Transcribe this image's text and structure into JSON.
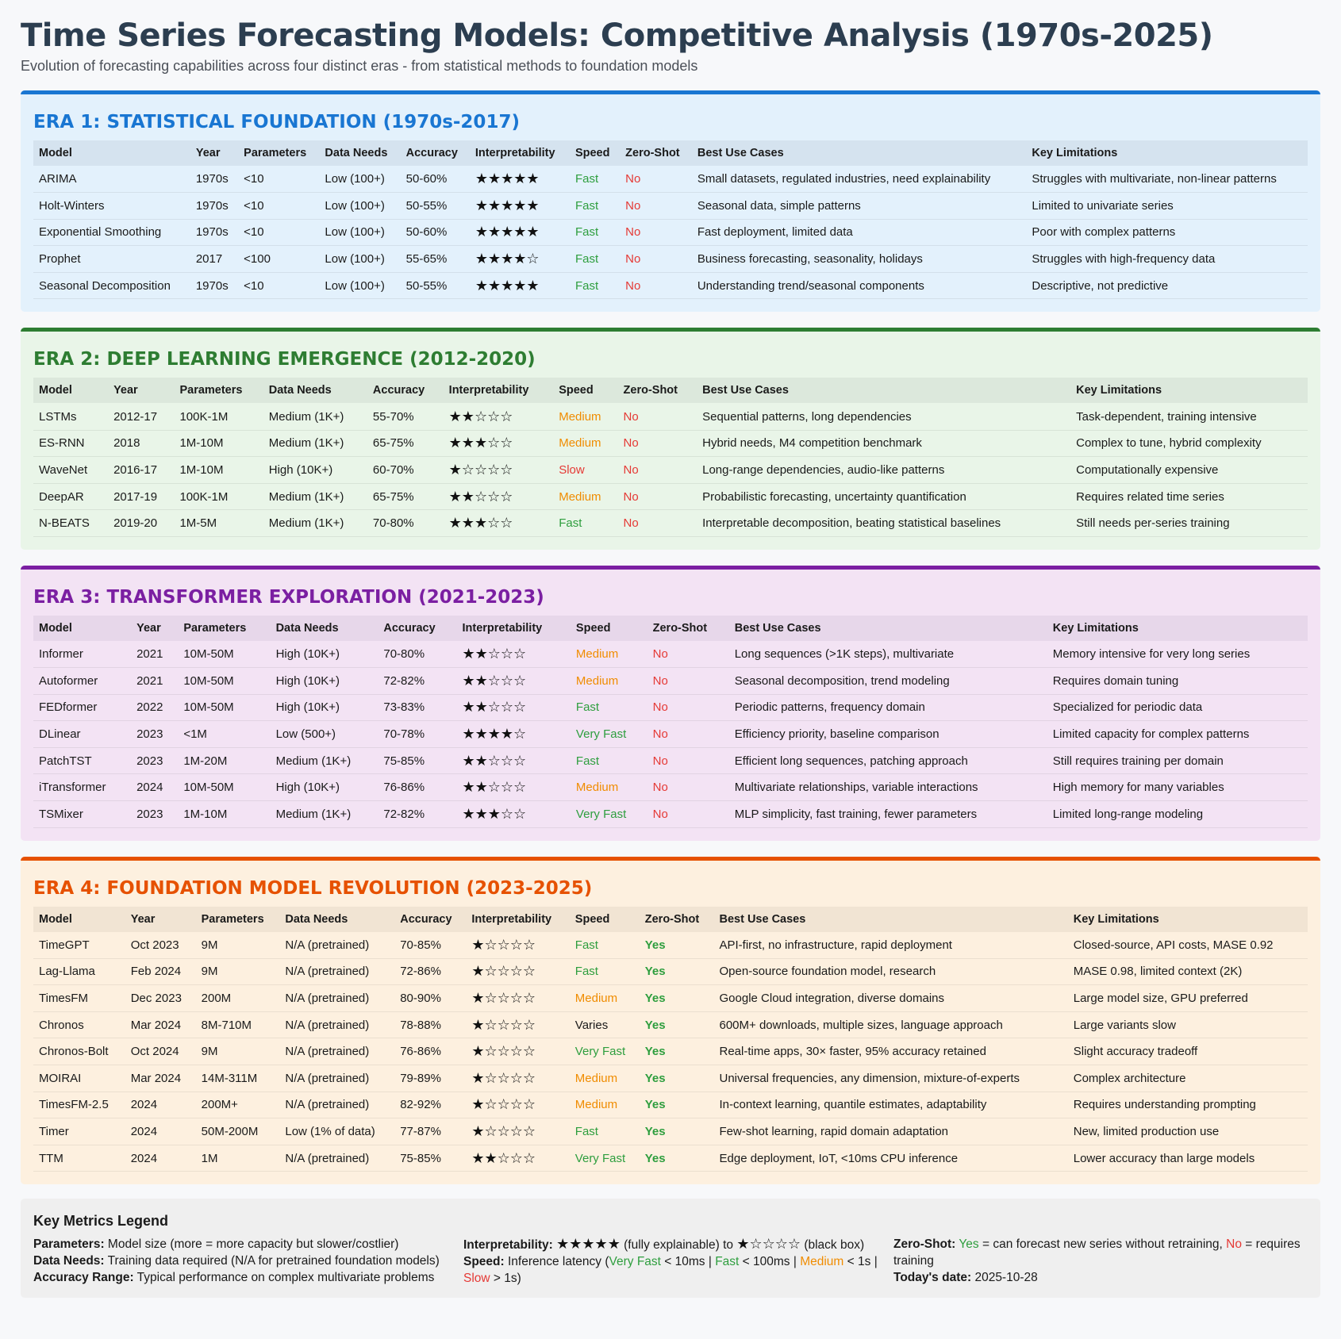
{
  "title": "Time Series Forecasting Models: Competitive Analysis (1970s-2025)",
  "subtitle": "Evolution of forecasting capabilities across four distinct eras - from statistical methods to foundation models",
  "headers": [
    "Model",
    "Year",
    "Parameters",
    "Data Needs",
    "Accuracy",
    "Interpretability",
    "Speed",
    "Zero-Shot",
    "Best Use Cases",
    "Key Limitations"
  ],
  "eras": [
    {
      "title": "ERA 1: STATISTICAL FOUNDATION (1970s-2017)",
      "color": "#1976d2",
      "rows": [
        [
          "ARIMA",
          "1970s",
          "<10",
          "Low (100+)",
          "50-60%",
          "★★★★★",
          "Fast",
          "No",
          "Small datasets, regulated industries, need explainability",
          "Struggles with multivariate, non-linear patterns"
        ],
        [
          "Holt-Winters",
          "1970s",
          "<10",
          "Low (100+)",
          "50-55%",
          "★★★★★",
          "Fast",
          "No",
          "Seasonal data, simple patterns",
          "Limited to univariate series"
        ],
        [
          "Exponential Smoothing",
          "1970s",
          "<10",
          "Low (100+)",
          "50-60%",
          "★★★★★",
          "Fast",
          "No",
          "Fast deployment, limited data",
          "Poor with complex patterns"
        ],
        [
          "Prophet",
          "2017",
          "<100",
          "Low (100+)",
          "55-65%",
          "★★★★☆",
          "Fast",
          "No",
          "Business forecasting, seasonality, holidays",
          "Struggles with high-frequency data"
        ],
        [
          "Seasonal Decomposition",
          "1970s",
          "<10",
          "Low (100+)",
          "50-55%",
          "★★★★★",
          "Fast",
          "No",
          "Understanding trend/seasonal components",
          "Descriptive, not predictive"
        ]
      ]
    },
    {
      "title": "ERA 2: DEEP LEARNING EMERGENCE (2012-2020)",
      "color": "#2e7d32",
      "rows": [
        [
          "LSTMs",
          "2012-17",
          "100K-1M",
          "Medium (1K+)",
          "55-70%",
          "★★☆☆☆",
          "Medium",
          "No",
          "Sequential patterns, long dependencies",
          "Task-dependent, training intensive"
        ],
        [
          "ES-RNN",
          "2018",
          "1M-10M",
          "Medium (1K+)",
          "65-75%",
          "★★★☆☆",
          "Medium",
          "No",
          "Hybrid needs, M4 competition benchmark",
          "Complex to tune, hybrid complexity"
        ],
        [
          "WaveNet",
          "2016-17",
          "1M-10M",
          "High (10K+)",
          "60-70%",
          "★☆☆☆☆",
          "Slow",
          "No",
          "Long-range dependencies, audio-like patterns",
          "Computationally expensive"
        ],
        [
          "DeepAR",
          "2017-19",
          "100K-1M",
          "Medium (1K+)",
          "65-75%",
          "★★☆☆☆",
          "Medium",
          "No",
          "Probabilistic forecasting, uncertainty quantification",
          "Requires related time series"
        ],
        [
          "N-BEATS",
          "2019-20",
          "1M-5M",
          "Medium (1K+)",
          "70-80%",
          "★★★☆☆",
          "Fast",
          "No",
          "Interpretable decomposition, beating statistical baselines",
          "Still needs per-series training"
        ]
      ]
    },
    {
      "title": "ERA 3: TRANSFORMER EXPLORATION (2021-2023)",
      "color": "#7b1fa2",
      "rows": [
        [
          "Informer",
          "2021",
          "10M-50M",
          "High (10K+)",
          "70-80%",
          "★★☆☆☆",
          "Medium",
          "No",
          "Long sequences (>1K steps), multivariate",
          "Memory intensive for very long series"
        ],
        [
          "Autoformer",
          "2021",
          "10M-50M",
          "High (10K+)",
          "72-82%",
          "★★☆☆☆",
          "Medium",
          "No",
          "Seasonal decomposition, trend modeling",
          "Requires domain tuning"
        ],
        [
          "FEDformer",
          "2022",
          "10M-50M",
          "High (10K+)",
          "73-83%",
          "★★☆☆☆",
          "Fast",
          "No",
          "Periodic patterns, frequency domain",
          "Specialized for periodic data"
        ],
        [
          "DLinear",
          "2023",
          "<1M",
          "Low (500+)",
          "70-78%",
          "★★★★☆",
          "Very Fast",
          "No",
          "Efficiency priority, baseline comparison",
          "Limited capacity for complex patterns"
        ],
        [
          "PatchTST",
          "2023",
          "1M-20M",
          "Medium (1K+)",
          "75-85%",
          "★★☆☆☆",
          "Fast",
          "No",
          "Efficient long sequences, patching approach",
          "Still requires training per domain"
        ],
        [
          "iTransformer",
          "2024",
          "10M-50M",
          "High (10K+)",
          "76-86%",
          "★★☆☆☆",
          "Medium",
          "No",
          "Multivariate relationships, variable interactions",
          "High memory for many variables"
        ],
        [
          "TSMixer",
          "2023",
          "1M-10M",
          "Medium (1K+)",
          "72-82%",
          "★★★☆☆",
          "Very Fast",
          "No",
          "MLP simplicity, fast training, fewer parameters",
          "Limited long-range modeling"
        ]
      ]
    },
    {
      "title": "ERA 4: FOUNDATION MODEL REVOLUTION (2023-2025)",
      "color": "#e65100",
      "rows": [
        [
          "TimeGPT",
          "Oct 2023",
          "9M",
          "N/A (pretrained)",
          "70-85%",
          "★☆☆☆☆",
          "Fast",
          "Yes",
          "API-first, no infrastructure, rapid deployment",
          "Closed-source, API costs, MASE 0.92"
        ],
        [
          "Lag-Llama",
          "Feb 2024",
          "9M",
          "N/A (pretrained)",
          "72-86%",
          "★☆☆☆☆",
          "Fast",
          "Yes",
          "Open-source foundation model, research",
          "MASE 0.98, limited context (2K)"
        ],
        [
          "TimesFM",
          "Dec 2023",
          "200M",
          "N/A (pretrained)",
          "80-90%",
          "★☆☆☆☆",
          "Medium",
          "Yes",
          "Google Cloud integration, diverse domains",
          "Large model size, GPU preferred"
        ],
        [
          "Chronos",
          "Mar 2024",
          "8M-710M",
          "N/A (pretrained)",
          "78-88%",
          "★☆☆☆☆",
          "Varies",
          "Yes",
          "600M+ downloads, multiple sizes, language approach",
          "Large variants slow"
        ],
        [
          "Chronos-Bolt",
          "Oct 2024",
          "9M",
          "N/A (pretrained)",
          "76-86%",
          "★☆☆☆☆",
          "Very Fast",
          "Yes",
          "Real-time apps, 30× faster, 95% accuracy retained",
          "Slight accuracy tradeoff"
        ],
        [
          "MOIRAI",
          "Mar 2024",
          "14M-311M",
          "N/A (pretrained)",
          "79-89%",
          "★☆☆☆☆",
          "Medium",
          "Yes",
          "Universal frequencies, any dimension, mixture-of-experts",
          "Complex architecture"
        ],
        [
          "TimesFM-2.5",
          "2024",
          "200M+",
          "N/A (pretrained)",
          "82-92%",
          "★☆☆☆☆",
          "Medium",
          "Yes",
          "In-context learning, quantile estimates, adaptability",
          "Requires understanding prompting"
        ],
        [
          "Timer",
          "2024",
          "50M-200M",
          "Low (1% of data)",
          "77-87%",
          "★☆☆☆☆",
          "Fast",
          "Yes",
          "Few-shot learning, rapid domain adaptation",
          "New, limited production use"
        ],
        [
          "TTM",
          "2024",
          "1M",
          "N/A (pretrained)",
          "75-85%",
          "★★☆☆☆",
          "Very Fast",
          "Yes",
          "Edge deployment, IoT, <10ms CPU inference",
          "Lower accuracy than large models"
        ]
      ]
    }
  ],
  "legend": {
    "title": "Key Metrics Legend",
    "parameters_label": "Parameters:",
    "parameters_text": "Model size (more = more capacity but slower/costlier)",
    "data_needs_label": "Data Needs:",
    "data_needs_text": "Training data required (N/A for pretrained foundation models)",
    "accuracy_label": "Accuracy Range:",
    "accuracy_text": "Typical performance on complex multivariate problems",
    "interp_label": "Interpretability:",
    "interp_high": "★★★★★",
    "interp_mid": "(fully explainable) to",
    "interp_low": "★☆☆☆☆",
    "interp_end": "(black box)",
    "speed_label": "Speed:",
    "speed_pre": "Inference latency (",
    "speed_vf": "Very Fast",
    "speed_vf_t": "< 10ms |",
    "speed_f": "Fast",
    "speed_f_t": "< 100ms |",
    "speed_m": "Medium",
    "speed_m_t": "< 1s |",
    "speed_s": "Slow",
    "speed_s_t": "> 1s)",
    "zeroshot_label": "Zero-Shot:",
    "zeroshot_yes": "Yes",
    "zeroshot_yes_t": "= can forecast new series without retraining,",
    "zeroshot_no": "No",
    "zeroshot_no_t": "= requires training",
    "date_label": "Today's date:",
    "date_value": "2025-10-28"
  }
}
